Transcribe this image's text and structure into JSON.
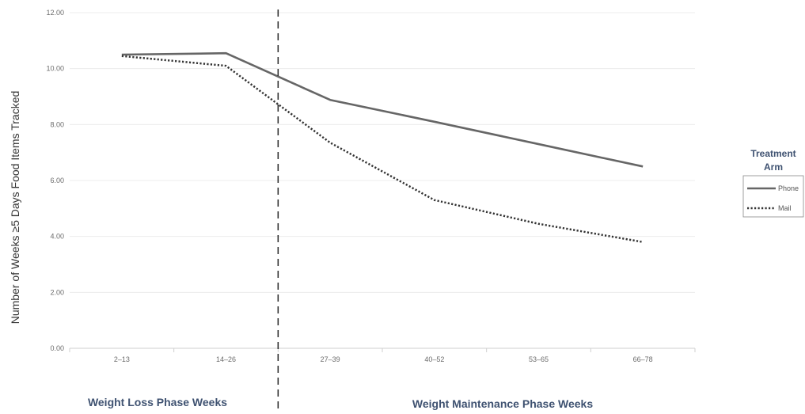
{
  "chart_data": {
    "type": "line",
    "categories": [
      "2–13",
      "14–26",
      "27–39",
      "40–52",
      "53–65",
      "66–78"
    ],
    "series": [
      {
        "name": "Phone",
        "values": [
          10.5,
          10.55,
          8.88,
          8.1,
          7.3,
          6.5
        ],
        "color": "#666666",
        "style": "solid"
      },
      {
        "name": "Mail",
        "values": [
          10.45,
          10.1,
          7.35,
          5.3,
          4.45,
          3.8
        ],
        "color": "#333333",
        "style": "dotted"
      }
    ],
    "ylabel": "Number of Weeks ≥5 Days Food Items Tracked",
    "ylim": [
      0,
      12
    ],
    "yticks": [
      "0.00",
      "2.00",
      "4.00",
      "6.00",
      "8.00",
      "10.00",
      "12.00"
    ],
    "grid": true,
    "legend": {
      "title_line1": "Treatment",
      "title_line2": "Arm",
      "position": "right"
    },
    "annotations": {
      "divider_between": [
        "14–26",
        "27–39"
      ],
      "phase_left": "Weight Loss Phase Weeks",
      "phase_right": "Weight Maintenance Phase Weeks"
    }
  }
}
